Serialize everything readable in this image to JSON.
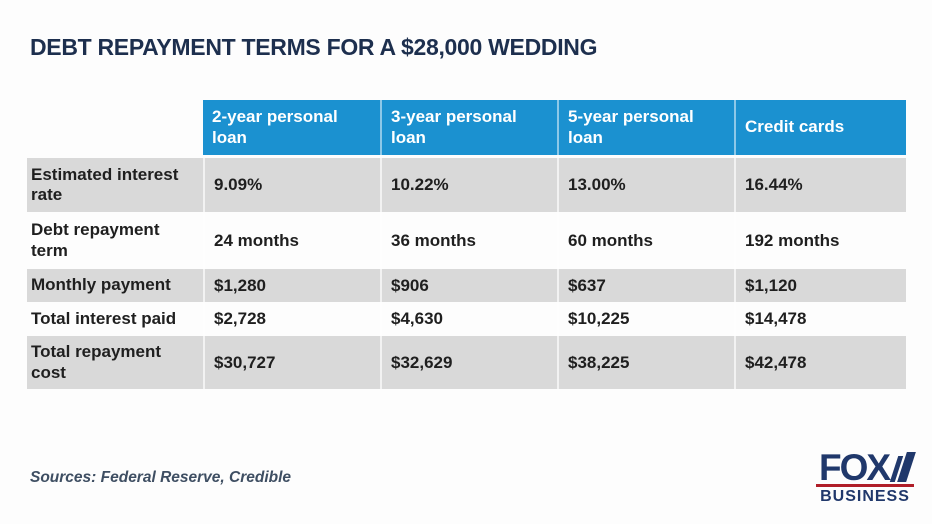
{
  "chart_data": {
    "type": "table",
    "title": "DEBT REPAYMENT TERMS FOR A $28,000 WEDDING",
    "columns": [
      "2-year personal loan",
      "3-year personal loan",
      "5-year personal loan",
      "Credit cards"
    ],
    "rows": [
      {
        "label": "Estimated interest rate",
        "values": [
          "9.09%",
          "10.22%",
          "13.00%",
          "16.44%"
        ]
      },
      {
        "label": "Debt repayment term",
        "values": [
          "24 months",
          "36 months",
          "60 months",
          "192 months"
        ]
      },
      {
        "label": "Monthly payment",
        "values": [
          "$1,280",
          "$906",
          "$637",
          "$1,120"
        ]
      },
      {
        "label": "Total interest paid",
        "values": [
          "$2,728",
          "$4,630",
          "$10,225",
          "$14,478"
        ]
      },
      {
        "label": "Total repayment cost",
        "values": [
          "$30,727",
          "$32,629",
          "$38,225",
          "$42,478"
        ]
      }
    ],
    "source_note": "Sources: Federal Reserve, Credible",
    "layout": {
      "header_fill": "blue",
      "alternating_row_shading": true,
      "shaded_rows": [
        0,
        2,
        4
      ]
    }
  },
  "logo": {
    "line1": "FOX",
    "line2": "BUSINESS"
  },
  "colors": {
    "header_blue": "#1b91d0",
    "row_gray": "#d9d9d9",
    "title_navy": "#1d2f4e",
    "cell_text": "#1f1f1f",
    "source_gray": "#3e4e62",
    "logo_navy": "#20386b",
    "logo_red": "#b01e28"
  }
}
